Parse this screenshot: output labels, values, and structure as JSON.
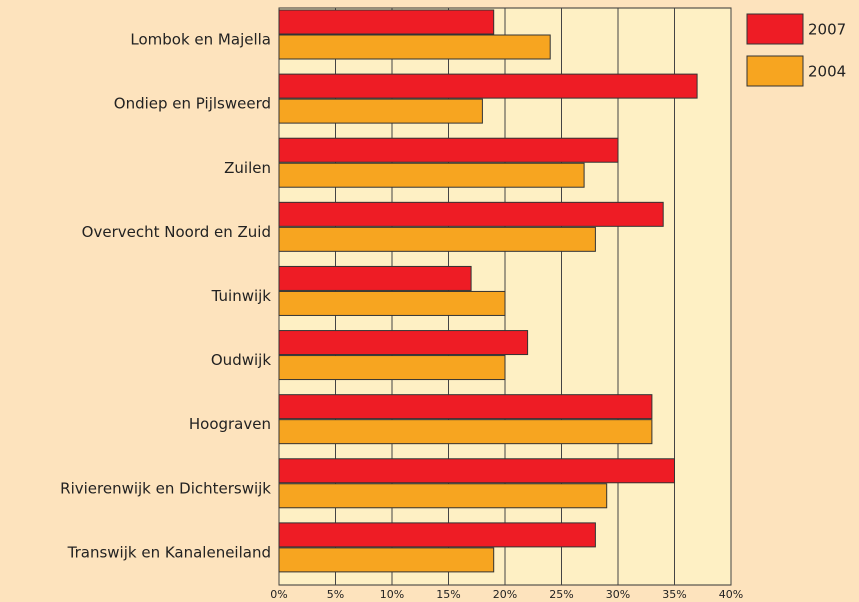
{
  "chart_data": {
    "type": "hbar",
    "categories": [
      "Lombok en Majella",
      "Ondiep en Pijlsweerd",
      "Zuilen",
      "Overvecht Noord en Zuid",
      "Tuinwijk",
      "Oudwijk",
      "Hoograven",
      "Rivierenwijk en Dichterswijk",
      "Transwijk en Kanaleneiland"
    ],
    "series": [
      {
        "name": "2007",
        "color": "#ee1c25",
        "values": [
          19,
          37,
          30,
          34,
          17,
          22,
          33,
          35,
          28
        ]
      },
      {
        "name": "2004",
        "color": "#f7a520",
        "values": [
          24,
          18,
          27,
          28,
          20,
          20,
          33,
          29,
          19
        ]
      }
    ],
    "xlim": [
      0,
      40
    ],
    "xticks": [
      {
        "value": 0,
        "label": "0%"
      },
      {
        "value": 5,
        "label": "5%"
      },
      {
        "value": 10,
        "label": "10%"
      },
      {
        "value": 15,
        "label": "15%"
      },
      {
        "value": 20,
        "label": "20%"
      },
      {
        "value": 25,
        "label": "25%"
      },
      {
        "value": 30,
        "label": "30%"
      },
      {
        "value": 35,
        "label": "35%"
      },
      {
        "value": 40,
        "label": "40%"
      }
    ],
    "grid": true,
    "legend": "right"
  }
}
